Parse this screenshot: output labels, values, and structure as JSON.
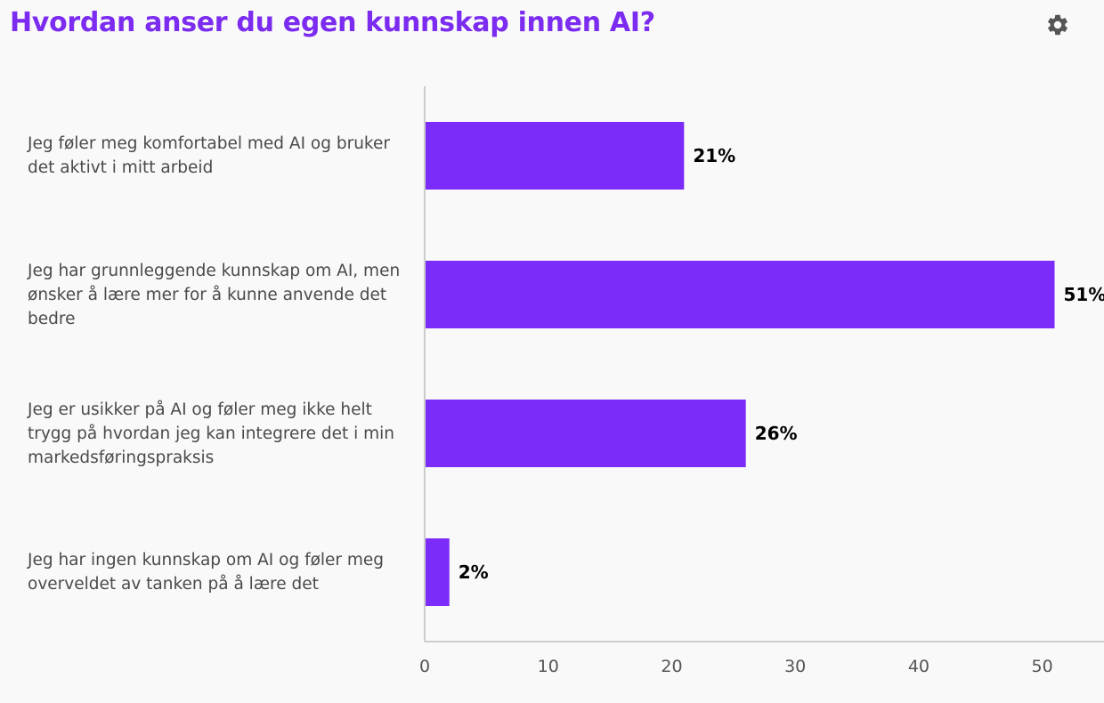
{
  "header": {
    "title": "Hvordan anser du egen kunnskap innen AI?",
    "settings_icon": "gear-icon"
  },
  "colors": {
    "accent": "#7b2cf0",
    "bar": "#7b2cf8",
    "axis": "#cccccc"
  },
  "chart_data": {
    "type": "bar",
    "orientation": "horizontal",
    "title": "Hvordan anser du egen kunnskap innen AI?",
    "categories": [
      "Jeg føler meg komfortabel med AI og bruker det aktivt i mitt arbeid",
      "Jeg har grunnleggende kunnskap om AI, men ønsker å lære mer for å kunne anvende det bedre",
      "Jeg er usikker på AI og føler meg ikke helt trygg på hvordan jeg kan integrere det i min markedsføringspraksis",
      "Jeg har ingen kunnskap om AI og føler meg overveldet av tanken på å lære det"
    ],
    "values": [
      21,
      51,
      26,
      2
    ],
    "value_labels": [
      "21%",
      "51%",
      "26%",
      "2%"
    ],
    "xlim": [
      0,
      55
    ],
    "xticks": [
      "0",
      "10",
      "20",
      "30",
      "40",
      "50"
    ],
    "xtick_values": [
      0,
      10,
      20,
      30,
      40,
      50
    ],
    "grid": false,
    "legend": "none"
  }
}
